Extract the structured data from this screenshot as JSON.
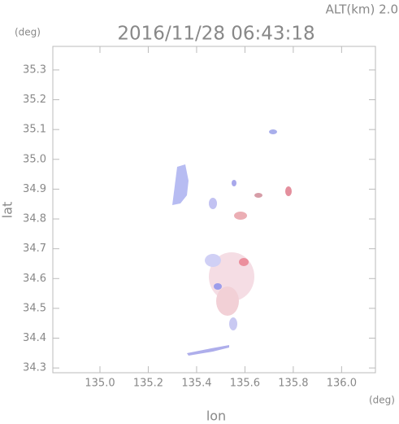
{
  "chart_data": {
    "type": "heatmap",
    "title": "2016/11/28 06:43:18",
    "altitude_label": "ALT(km) 2.0",
    "y_unit": "(deg)",
    "x_unit": "(deg)",
    "xlabel": "lon",
    "ylabel": "lat",
    "xlim": [
      134.805,
      136.14
    ],
    "ylim": [
      34.284,
      35.379
    ],
    "xticks": [
      {
        "value": 135.0,
        "label": "135.0"
      },
      135.2,
      135.4,
      135.6,
      135.8,
      {
        "value": 136.0,
        "label": "136.0"
      }
    ],
    "yticks": [
      34.3,
      34.4,
      34.5,
      34.6,
      34.7,
      34.8,
      34.9,
      {
        "value": 35.0,
        "label": "35.0"
      },
      35.1,
      35.2,
      35.3
    ],
    "frame_color": "#bbbbbb",
    "text_color": "#888888"
  }
}
